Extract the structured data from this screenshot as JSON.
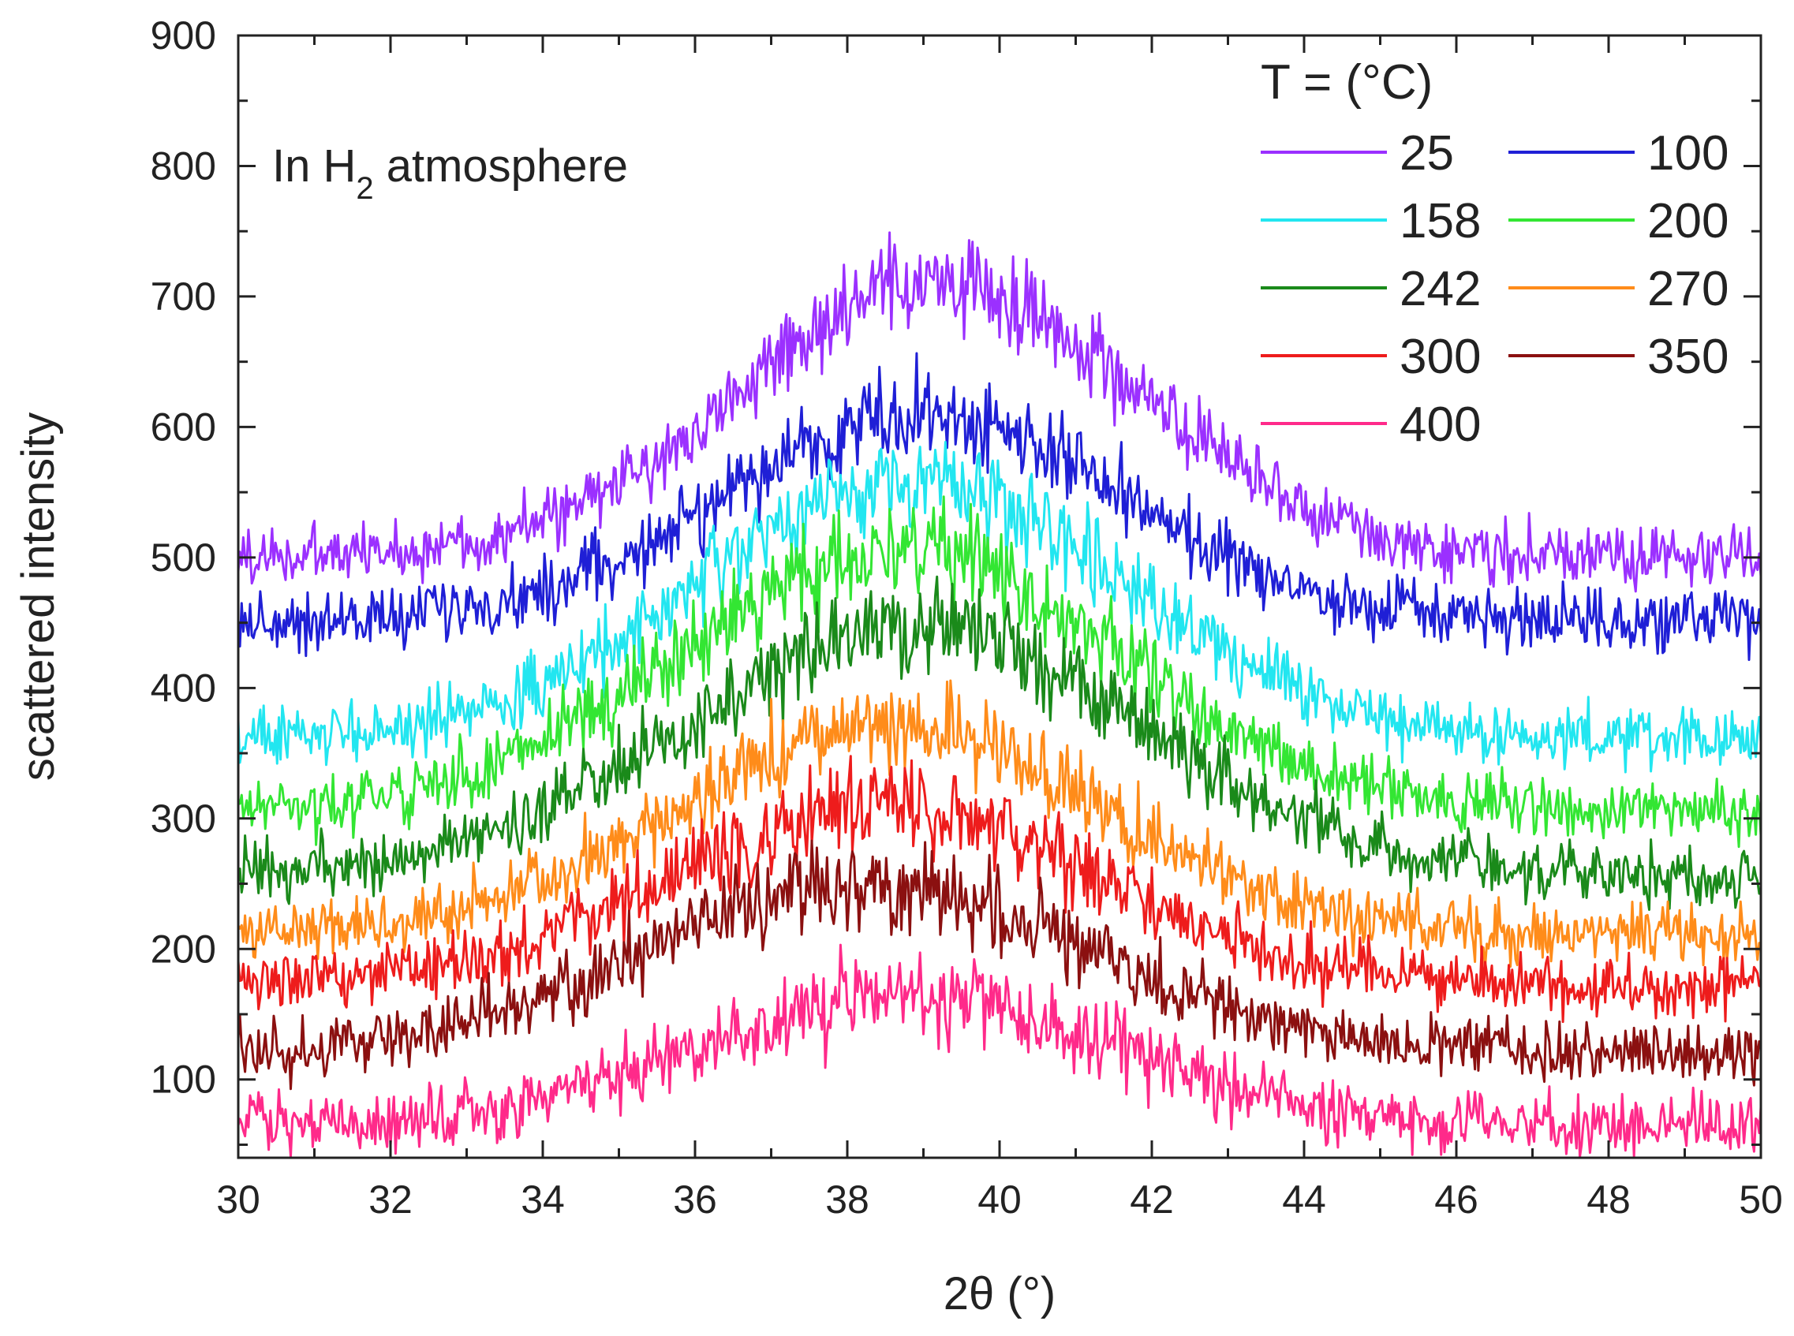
{
  "chart_data": {
    "type": "line",
    "title": "",
    "xlabel": "2θ (°)",
    "ylabel": "scattered intensity",
    "xlim": [
      30,
      50
    ],
    "ylim": [
      40,
      900
    ],
    "xticks": [
      30,
      32,
      34,
      36,
      38,
      40,
      42,
      44,
      46,
      48,
      50
    ],
    "yticks": [
      100,
      200,
      300,
      400,
      500,
      600,
      700,
      800,
      900
    ],
    "annotation": {
      "prefix": "In H",
      "subscript": "2",
      "suffix": " atmosphere"
    },
    "legend": {
      "title": "T = (°C)",
      "placement": "top-right",
      "columns": 2
    },
    "noise_amplitude": 25,
    "series": [
      {
        "name": "25",
        "color": "#9b30ff",
        "baseline": 500,
        "peak_center": 39.2,
        "peak_height": 210,
        "peak_width": 2.6
      },
      {
        "name": "100",
        "color": "#1f1fd6",
        "baseline": 450,
        "peak_center": 39.0,
        "peak_height": 160,
        "peak_width": 2.6
      },
      {
        "name": "158",
        "color": "#22e6f0",
        "baseline": 360,
        "peak_center": 38.9,
        "peak_height": 200,
        "peak_width": 2.8
      },
      {
        "name": "200",
        "color": "#33e633",
        "baseline": 305,
        "peak_center": 38.7,
        "peak_height": 200,
        "peak_width": 2.9
      },
      {
        "name": "242",
        "color": "#1a8a1a",
        "baseline": 255,
        "peak_center": 38.9,
        "peak_height": 190,
        "peak_width": 3.0
      },
      {
        "name": "270",
        "color": "#ff8c1a",
        "baseline": 210,
        "peak_center": 38.6,
        "peak_height": 160,
        "peak_width": 2.8
      },
      {
        "name": "300",
        "color": "#ee1c1c",
        "baseline": 170,
        "peak_center": 38.5,
        "peak_height": 140,
        "peak_width": 2.8
      },
      {
        "name": "350",
        "color": "#8b1010",
        "baseline": 120,
        "peak_center": 38.3,
        "peak_height": 130,
        "peak_width": 2.9
      },
      {
        "name": "400",
        "color": "#ff2a8a",
        "baseline": 65,
        "peak_center": 38.8,
        "peak_height": 100,
        "peak_width": 2.7
      }
    ]
  }
}
